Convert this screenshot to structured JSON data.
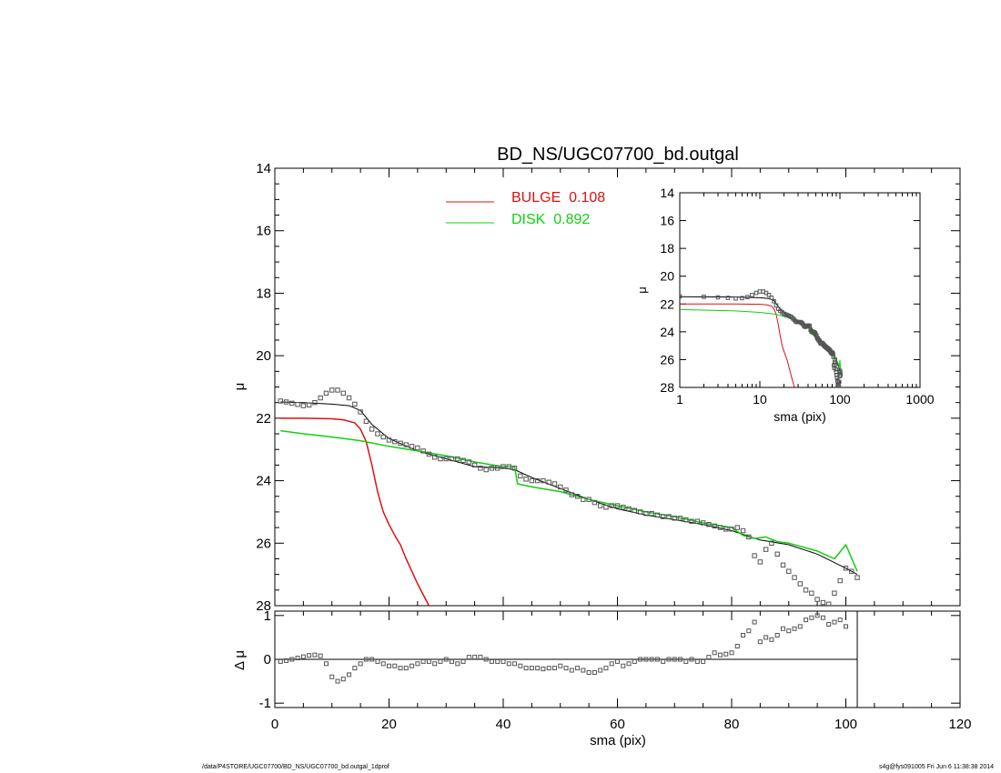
{
  "footer": {
    "path": "/data/P4STORE/UGC07700/BD_NS/UGC07700_bd.outgal_1dprof",
    "stamp": "s4g@fys091005  Fri Jun  6 11:38:38 2014"
  },
  "colors": {
    "bulge": "#e01010",
    "disk": "#10d010",
    "model": "#000000",
    "points": "#555555"
  },
  "chart_data": [
    {
      "id": "main",
      "type": "line",
      "title": "BD_NS/UGC07700_bd.outgal",
      "xlabel": "",
      "ylabel": "μ",
      "xlim": [
        0,
        120
      ],
      "ylim": [
        28,
        14
      ],
      "yticks": [
        "14",
        "16",
        "18",
        "20",
        "22",
        "24",
        "26",
        "28"
      ],
      "legend": [
        {
          "label": "BULGE  0.108",
          "color": "#e01010"
        },
        {
          "label": "DISK  0.892",
          "color": "#10d010"
        }
      ],
      "series": [
        {
          "role": "data",
          "x": [
            1,
            2,
            3,
            4,
            5,
            6,
            7,
            8,
            9,
            10,
            11,
            12,
            13,
            14,
            15,
            16,
            17,
            18,
            19,
            20,
            21,
            22,
            23,
            24,
            25,
            26,
            27,
            28,
            29,
            30,
            31,
            32,
            33,
            34,
            35,
            36,
            37,
            38,
            39,
            40,
            41,
            42,
            43,
            44,
            45,
            46,
            47,
            48,
            49,
            50,
            51,
            52,
            53,
            54,
            55,
            56,
            57,
            58,
            59,
            60,
            61,
            62,
            63,
            64,
            65,
            66,
            67,
            68,
            69,
            70,
            71,
            72,
            73,
            74,
            75,
            76,
            77,
            78,
            79,
            80,
            81,
            82,
            83,
            84,
            85,
            86,
            87,
            88,
            89,
            90,
            91,
            92,
            93,
            94,
            95,
            96,
            97,
            98,
            99,
            100,
            101,
            102
          ],
          "y": [
            21.45,
            21.48,
            21.52,
            21.56,
            21.6,
            21.58,
            21.5,
            21.35,
            21.2,
            21.1,
            21.1,
            21.2,
            21.35,
            21.55,
            21.8,
            22.1,
            22.35,
            22.5,
            22.6,
            22.7,
            22.75,
            22.8,
            22.85,
            22.9,
            22.95,
            23.05,
            23.15,
            23.25,
            23.3,
            23.3,
            23.3,
            23.3,
            23.35,
            23.4,
            23.5,
            23.6,
            23.65,
            23.6,
            23.6,
            23.55,
            23.55,
            23.6,
            23.85,
            23.95,
            24.0,
            24.0,
            24.0,
            24.05,
            24.1,
            24.2,
            24.3,
            24.45,
            24.5,
            24.6,
            24.6,
            24.7,
            24.8,
            24.85,
            24.8,
            24.8,
            24.85,
            24.9,
            24.95,
            25.0,
            25.05,
            25.05,
            25.1,
            25.15,
            25.15,
            25.2,
            25.2,
            25.25,
            25.3,
            25.3,
            25.35,
            25.4,
            25.45,
            25.5,
            25.55,
            25.55,
            25.5,
            25.6,
            25.8,
            26.4,
            26.6,
            26.2,
            26.0,
            26.35,
            26.7,
            26.9,
            27.1,
            27.3,
            27.5,
            27.6,
            27.8,
            27.9,
            27.95,
            27.6,
            27.2,
            26.8,
            26.9,
            27.1
          ]
        },
        {
          "role": "model",
          "x": [
            1,
            5,
            10,
            13,
            15,
            17,
            20,
            25,
            30,
            35,
            40,
            42,
            45,
            50,
            55,
            60,
            65,
            70,
            75,
            80,
            85,
            90,
            95,
            100,
            102
          ],
          "y": [
            21.48,
            21.5,
            21.55,
            21.6,
            21.75,
            22.2,
            22.65,
            23.05,
            23.3,
            23.55,
            23.6,
            23.65,
            23.9,
            24.25,
            24.6,
            24.9,
            25.1,
            25.25,
            25.4,
            25.6,
            25.9,
            26.05,
            26.35,
            26.8,
            27.0
          ]
        },
        {
          "role": "bulge",
          "x": [
            1,
            5,
            10,
            12,
            14,
            15,
            16,
            17,
            18,
            19,
            20,
            21,
            22,
            23,
            24,
            25,
            26,
            27
          ],
          "y": [
            22.0,
            22.0,
            22.02,
            22.05,
            22.15,
            22.35,
            22.75,
            23.5,
            24.35,
            25.0,
            25.4,
            25.75,
            26.05,
            26.5,
            26.9,
            27.3,
            27.65,
            28.0
          ]
        },
        {
          "role": "disk",
          "x": [
            1,
            5,
            10,
            15,
            20,
            25,
            30,
            35,
            40,
            42,
            42.5,
            45,
            50,
            55,
            60,
            65,
            70,
            75,
            80,
            82,
            84,
            86,
            88,
            90,
            92,
            95,
            98,
            100,
            102
          ],
          "y": [
            22.4,
            22.5,
            22.6,
            22.72,
            22.9,
            23.05,
            23.2,
            23.4,
            23.55,
            23.55,
            24.1,
            24.2,
            24.35,
            24.6,
            24.8,
            25.0,
            25.15,
            25.35,
            25.5,
            25.75,
            25.85,
            25.8,
            25.95,
            26.0,
            26.1,
            26.25,
            26.5,
            26.05,
            26.9
          ]
        }
      ]
    },
    {
      "id": "residual",
      "type": "scatter",
      "title": "",
      "xlabel": "sma (pix)",
      "ylabel": "Δ μ",
      "xlim": [
        0,
        120
      ],
      "ylim": [
        -1.1,
        1.1
      ],
      "xticks": [
        "0",
        "20",
        "40",
        "60",
        "80",
        "100",
        "120"
      ],
      "yticks": [
        "1",
        "0",
        "-1"
      ],
      "x": [
        1,
        2,
        3,
        4,
        5,
        6,
        7,
        8,
        9,
        10,
        11,
        12,
        13,
        14,
        15,
        16,
        17,
        18,
        19,
        20,
        21,
        22,
        23,
        24,
        25,
        26,
        27,
        28,
        29,
        30,
        31,
        32,
        33,
        34,
        35,
        36,
        37,
        38,
        39,
        40,
        41,
        42,
        43,
        44,
        45,
        46,
        47,
        48,
        49,
        50,
        51,
        52,
        53,
        54,
        55,
        56,
        57,
        58,
        59,
        60,
        61,
        62,
        63,
        64,
        65,
        66,
        67,
        68,
        69,
        70,
        71,
        72,
        73,
        74,
        75,
        76,
        77,
        78,
        79,
        80,
        81,
        82,
        83,
        84,
        85,
        86,
        87,
        88,
        89,
        90,
        91,
        92,
        93,
        94,
        95,
        96,
        97,
        98,
        99,
        100
      ],
      "y": [
        -0.05,
        -0.03,
        0.0,
        0.03,
        0.06,
        0.09,
        0.1,
        0.08,
        -0.1,
        -0.4,
        -0.5,
        -0.45,
        -0.35,
        -0.2,
        -0.1,
        0.0,
        0.0,
        -0.05,
        -0.1,
        -0.15,
        -0.15,
        -0.2,
        -0.2,
        -0.15,
        -0.1,
        -0.05,
        -0.05,
        -0.1,
        -0.05,
        0.0,
        -0.05,
        -0.1,
        -0.05,
        0.05,
        0.05,
        0.05,
        0.0,
        -0.05,
        -0.05,
        -0.05,
        -0.1,
        -0.1,
        -0.15,
        -0.2,
        -0.2,
        -0.2,
        -0.22,
        -0.2,
        -0.2,
        -0.15,
        -0.2,
        -0.25,
        -0.2,
        -0.25,
        -0.3,
        -0.3,
        -0.25,
        -0.2,
        -0.1,
        -0.05,
        -0.15,
        -0.1,
        -0.05,
        0.0,
        0.0,
        0.0,
        0.0,
        -0.05,
        0.0,
        0.0,
        0.0,
        -0.05,
        0.0,
        -0.05,
        -0.05,
        0.05,
        0.15,
        0.1,
        0.12,
        0.15,
        0.3,
        0.55,
        0.65,
        0.85,
        0.4,
        0.5,
        0.45,
        0.55,
        0.7,
        0.65,
        0.7,
        0.75,
        0.9,
        0.95,
        1.0,
        0.95,
        0.8,
        0.85,
        0.9,
        0.75
      ]
    },
    {
      "id": "inset",
      "type": "line",
      "title": "",
      "xlabel": "sma (pix)",
      "ylabel": "μ",
      "xscale": "log",
      "xlim": [
        1,
        1000
      ],
      "ylim": [
        28,
        14
      ],
      "xticks": [
        "1",
        "10",
        "100",
        "1000"
      ],
      "yticks": [
        "14",
        "16",
        "18",
        "20",
        "22",
        "24",
        "26",
        "28"
      ]
    }
  ]
}
